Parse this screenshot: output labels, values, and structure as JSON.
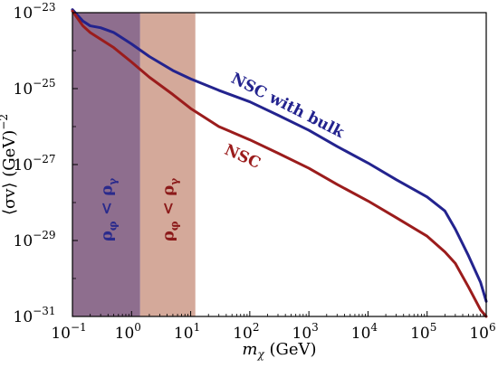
{
  "chart_data": {
    "type": "line",
    "xscale": "log",
    "yscale": "log",
    "xlim": [
      0.1,
      1000000
    ],
    "ylim": [
      1e-31,
      1e-23
    ],
    "xlabel_var": "m",
    "xlabel_sub": "χ",
    "xlabel_unit": " (GeV)",
    "ylabel_main": "⟨σv⟩ (GeV)",
    "ylabel_sup": "−2",
    "x_ticks": [
      {
        "value": 0.1,
        "base": "10",
        "exp": "−1"
      },
      {
        "value": 1,
        "base": "10",
        "exp": "0"
      },
      {
        "value": 10,
        "base": "10",
        "exp": "1"
      },
      {
        "value": 100,
        "base": "10",
        "exp": "2"
      },
      {
        "value": 1000,
        "base": "10",
        "exp": "3"
      },
      {
        "value": 10000,
        "base": "10",
        "exp": "4"
      },
      {
        "value": 100000,
        "base": "10",
        "exp": "5"
      },
      {
        "value": 1000000,
        "base": "10",
        "exp": "6"
      }
    ],
    "y_ticks": [
      {
        "value": 1e-23,
        "base": "10",
        "exp": "−23"
      },
      {
        "value": 1e-25,
        "base": "10",
        "exp": "−25"
      },
      {
        "value": 1e-27,
        "base": "10",
        "exp": "−27"
      },
      {
        "value": 1e-29,
        "base": "10",
        "exp": "−29"
      },
      {
        "value": 1e-31,
        "base": "10",
        "exp": "−31"
      }
    ],
    "bands": [
      {
        "x_range": [
          0.1,
          1.4
        ],
        "color": "#8e6e8e",
        "label_main": "ρ",
        "label_sub1": "φ",
        "label_mid": " < ρ",
        "label_sub2": "γ",
        "label_color": "#2a2a8c"
      },
      {
        "x_range": [
          1.4,
          12
        ],
        "color": "#d4a99a",
        "label_main": "ρ",
        "label_sub1": "φ",
        "label_mid": " < ρ",
        "label_sub2": "γ",
        "label_color": "#8b1a1a"
      }
    ],
    "series": [
      {
        "name": "NSC with bulk",
        "color": "#23238e",
        "points": [
          [
            0.1,
            1.2e-23
          ],
          [
            0.15,
            6e-24
          ],
          [
            0.2,
            4.5e-24
          ],
          [
            0.3,
            4e-24
          ],
          [
            0.5,
            3e-24
          ],
          [
            1,
            1.5e-24
          ],
          [
            2,
            7e-25
          ],
          [
            5,
            3e-25
          ],
          [
            10,
            1.8e-25
          ],
          [
            30,
            9e-26
          ],
          [
            100,
            4.5e-26
          ],
          [
            300,
            2e-26
          ],
          [
            1000,
            8e-27
          ],
          [
            3000,
            3e-27
          ],
          [
            10000,
            1.1e-27
          ],
          [
            30000,
            4e-28
          ],
          [
            100000,
            1.4e-28
          ],
          [
            200000,
            6e-29
          ],
          [
            300000,
            2e-29
          ],
          [
            500000,
            4e-30
          ],
          [
            800000,
            8e-31
          ],
          [
            1000000,
            2.5e-31
          ]
        ]
      },
      {
        "name": "NSC",
        "color": "#9b1c1c",
        "points": [
          [
            0.1,
            1.1e-23
          ],
          [
            0.15,
            4.5e-24
          ],
          [
            0.2,
            3e-24
          ],
          [
            0.3,
            2e-24
          ],
          [
            0.5,
            1.2e-24
          ],
          [
            1,
            5e-25
          ],
          [
            2,
            2e-25
          ],
          [
            5,
            7e-26
          ],
          [
            10,
            3e-26
          ],
          [
            30,
            1e-26
          ],
          [
            100,
            4.5e-27
          ],
          [
            300,
            2e-27
          ],
          [
            1000,
            8e-28
          ],
          [
            3000,
            3e-28
          ],
          [
            10000,
            1.1e-28
          ],
          [
            30000,
            4e-29
          ],
          [
            100000,
            1.3e-29
          ],
          [
            200000,
            5e-30
          ],
          [
            300000,
            2.5e-30
          ],
          [
            500000,
            6e-31
          ],
          [
            800000,
            1.5e-31
          ],
          [
            1000000,
            1e-31
          ]
        ]
      }
    ],
    "annotations": [
      {
        "text": "NSC with bulk",
        "series": "NSC with bulk",
        "color": "#23238e"
      },
      {
        "text": "NSC",
        "series": "NSC",
        "color": "#9b1c1c"
      }
    ]
  }
}
